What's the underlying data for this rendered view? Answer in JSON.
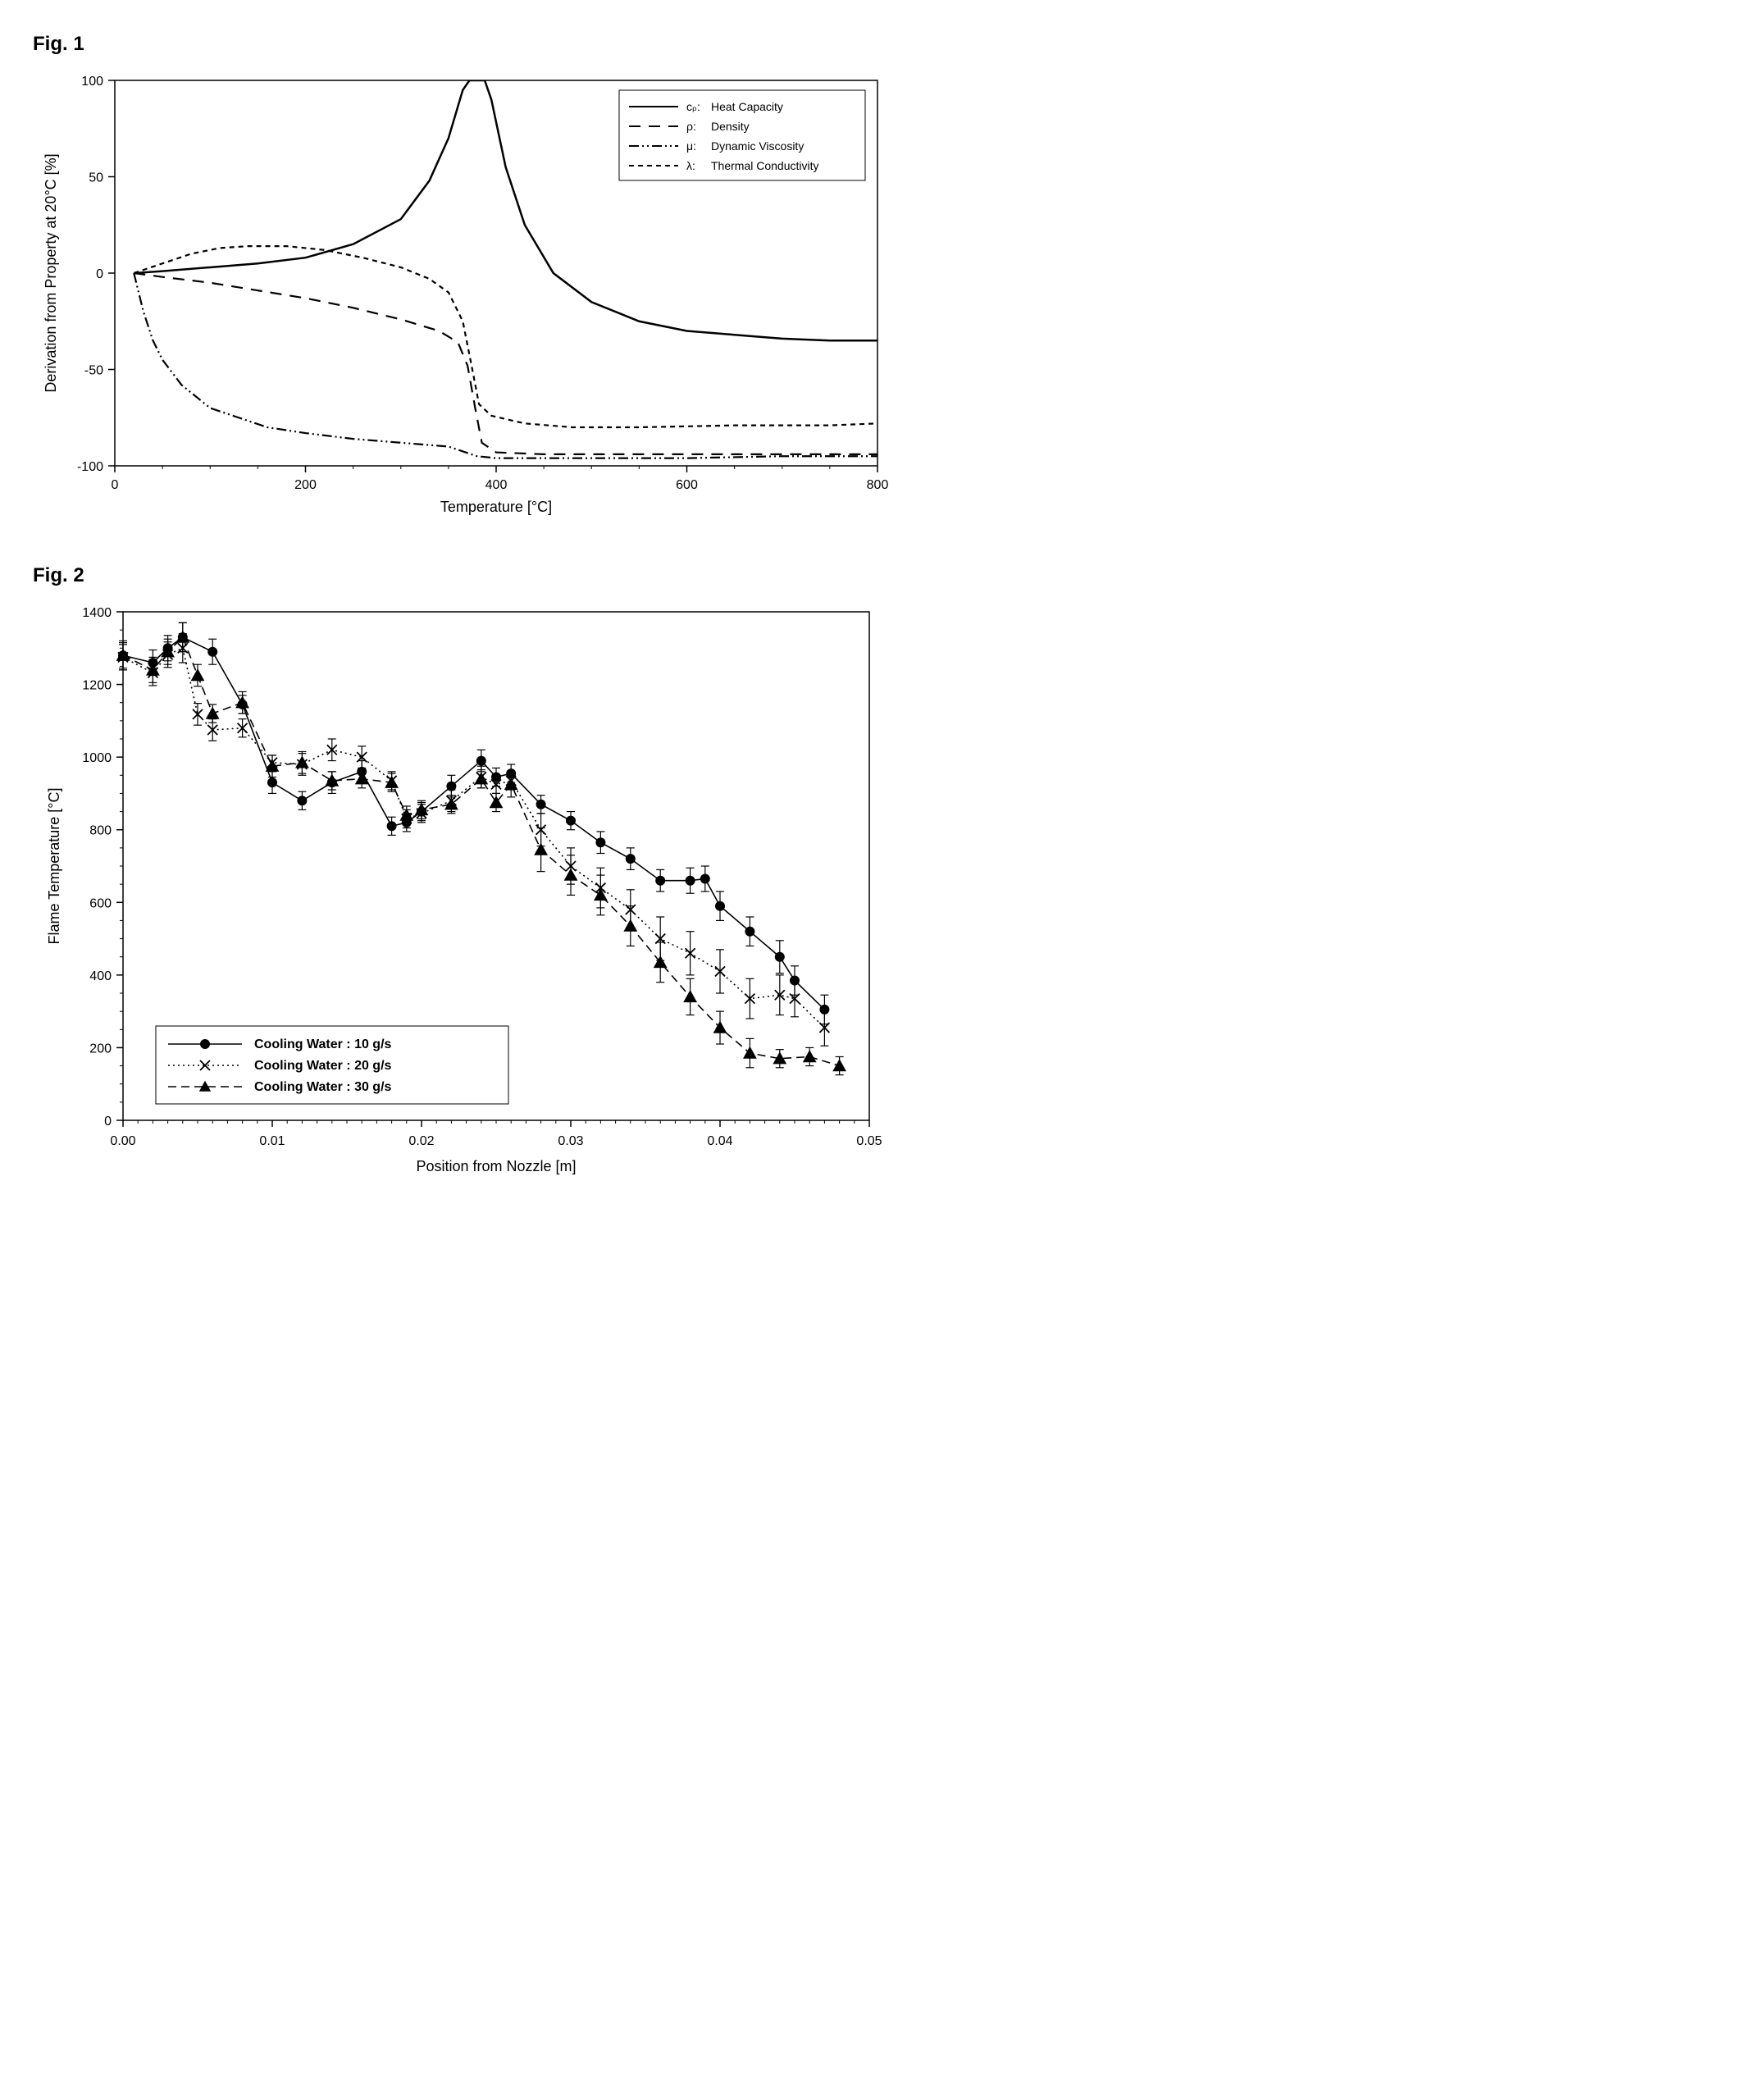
{
  "fig1": {
    "label": "Fig. 1",
    "type": "line",
    "xlabel": "Temperature [°C]",
    "ylabel": "Derivation from Property at 20°C [%]",
    "xlim": [
      0,
      800
    ],
    "ylim": [
      -100,
      100
    ],
    "xtick_step": 200,
    "ytick_step": 50,
    "label_fontsize": 18,
    "tick_fontsize": 16,
    "background_color": "#ffffff",
    "axis_color": "#000000",
    "legend": {
      "position": "top-right",
      "border_color": "#000000",
      "items": [
        {
          "symbol": "cₚ:",
          "label": "Heat Capacity",
          "style": "solid"
        },
        {
          "symbol": "ρ:",
          "label": "Density",
          "style": "longdash"
        },
        {
          "symbol": "μ:",
          "label": "dashdotdot",
          "label_text": "Dynamic Viscosity"
        },
        {
          "symbol": "λ:",
          "label": "Thermal Conductivity",
          "style": "shortdash"
        }
      ]
    },
    "series": [
      {
        "name": "heat-capacity",
        "color": "#000000",
        "width": 2.5,
        "dash": "none",
        "data": [
          [
            20,
            0
          ],
          [
            50,
            1
          ],
          [
            100,
            3
          ],
          [
            150,
            5
          ],
          [
            200,
            8
          ],
          [
            250,
            15
          ],
          [
            300,
            28
          ],
          [
            330,
            48
          ],
          [
            350,
            70
          ],
          [
            365,
            95
          ],
          [
            372,
            100
          ],
          [
            375,
            100
          ],
          [
            380,
            100
          ],
          [
            388,
            100
          ],
          [
            395,
            90
          ],
          [
            410,
            55
          ],
          [
            430,
            25
          ],
          [
            460,
            0
          ],
          [
            500,
            -15
          ],
          [
            550,
            -25
          ],
          [
            600,
            -30
          ],
          [
            650,
            -32
          ],
          [
            700,
            -34
          ],
          [
            750,
            -35
          ],
          [
            800,
            -35
          ]
        ]
      },
      {
        "name": "density",
        "color": "#000000",
        "width": 2.2,
        "dash": "14,10",
        "data": [
          [
            20,
            0
          ],
          [
            50,
            -2
          ],
          [
            100,
            -5
          ],
          [
            150,
            -9
          ],
          [
            200,
            -13
          ],
          [
            250,
            -18
          ],
          [
            300,
            -24
          ],
          [
            340,
            -30
          ],
          [
            360,
            -36
          ],
          [
            370,
            -48
          ],
          [
            378,
            -70
          ],
          [
            385,
            -88
          ],
          [
            400,
            -93
          ],
          [
            450,
            -94
          ],
          [
            500,
            -94
          ],
          [
            600,
            -94
          ],
          [
            700,
            -94
          ],
          [
            800,
            -94
          ]
        ]
      },
      {
        "name": "dynamic-viscosity",
        "color": "#000000",
        "width": 2.2,
        "dash": "12,4,2,4,2,4",
        "data": [
          [
            20,
            0
          ],
          [
            30,
            -20
          ],
          [
            40,
            -35
          ],
          [
            50,
            -45
          ],
          [
            70,
            -58
          ],
          [
            100,
            -70
          ],
          [
            130,
            -75
          ],
          [
            160,
            -80
          ],
          [
            200,
            -83
          ],
          [
            250,
            -86
          ],
          [
            300,
            -88
          ],
          [
            350,
            -90
          ],
          [
            380,
            -95
          ],
          [
            400,
            -96
          ],
          [
            450,
            -96
          ],
          [
            500,
            -96
          ],
          [
            600,
            -96
          ],
          [
            700,
            -95
          ],
          [
            800,
            -95
          ]
        ]
      },
      {
        "name": "thermal-conductivity",
        "color": "#000000",
        "width": 2.2,
        "dash": "6,5",
        "data": [
          [
            20,
            0
          ],
          [
            50,
            5
          ],
          [
            80,
            10
          ],
          [
            110,
            13
          ],
          [
            140,
            14
          ],
          [
            180,
            14
          ],
          [
            220,
            12
          ],
          [
            260,
            8
          ],
          [
            300,
            3
          ],
          [
            330,
            -3
          ],
          [
            350,
            -10
          ],
          [
            365,
            -25
          ],
          [
            375,
            -50
          ],
          [
            382,
            -68
          ],
          [
            395,
            -74
          ],
          [
            430,
            -78
          ],
          [
            480,
            -80
          ],
          [
            550,
            -80
          ],
          [
            650,
            -79
          ],
          [
            750,
            -79
          ],
          [
            800,
            -78
          ]
        ]
      }
    ]
  },
  "fig2": {
    "label": "Fig. 2",
    "type": "scatter-line-errorbar",
    "xlabel": "Position from Nozzle [m]",
    "ylabel": "Flame Temperature [°C]",
    "xlim": [
      0.0,
      0.05
    ],
    "ylim": [
      0,
      1400
    ],
    "xtick_step": 0.01,
    "ytick_step": 200,
    "label_fontsize": 18,
    "tick_fontsize": 16,
    "background_color": "#ffffff",
    "axis_color": "#000000",
    "error_cap": 5,
    "legend": {
      "position": "bottom-left-inside",
      "border_color": "#000000",
      "items": [
        {
          "marker": "circle",
          "line": "solid",
          "label": "Cooling Water : 10 g/s"
        },
        {
          "marker": "x",
          "line": "dotted",
          "label": "Cooling Water : 20 g/s"
        },
        {
          "marker": "triangle",
          "line": "dashed",
          "label": "Cooling Water : 30 g/s"
        }
      ]
    },
    "series": [
      {
        "name": "cooling-10",
        "marker": "circle",
        "marker_size": 6,
        "color": "#000000",
        "dash": "none",
        "data": [
          [
            0.0,
            1280,
            40
          ],
          [
            0.002,
            1260,
            35
          ],
          [
            0.003,
            1300,
            35
          ],
          [
            0.004,
            1330,
            40
          ],
          [
            0.006,
            1290,
            35
          ],
          [
            0.008,
            1145,
            25
          ],
          [
            0.01,
            930,
            30
          ],
          [
            0.012,
            880,
            25
          ],
          [
            0.014,
            930,
            30
          ],
          [
            0.016,
            960,
            30
          ],
          [
            0.018,
            810,
            25
          ],
          [
            0.019,
            820,
            25
          ],
          [
            0.02,
            850,
            25
          ],
          [
            0.022,
            920,
            30
          ],
          [
            0.024,
            990,
            30
          ],
          [
            0.025,
            945,
            25
          ],
          [
            0.026,
            955,
            25
          ],
          [
            0.028,
            870,
            25
          ],
          [
            0.03,
            825,
            25
          ],
          [
            0.032,
            765,
            30
          ],
          [
            0.034,
            720,
            30
          ],
          [
            0.036,
            660,
            30
          ],
          [
            0.038,
            660,
            35
          ],
          [
            0.039,
            665,
            35
          ],
          [
            0.04,
            590,
            40
          ],
          [
            0.042,
            520,
            40
          ],
          [
            0.044,
            450,
            45
          ],
          [
            0.045,
            385,
            40
          ],
          [
            0.047,
            305,
            40
          ]
        ]
      },
      {
        "name": "cooling-20",
        "marker": "x",
        "marker_size": 6,
        "color": "#000000",
        "dash": "2,4",
        "data": [
          [
            0.0,
            1275,
            35
          ],
          [
            0.002,
            1232,
            35
          ],
          [
            0.003,
            1282,
            35
          ],
          [
            0.004,
            1300,
            40
          ],
          [
            0.005,
            1118,
            30
          ],
          [
            0.006,
            1075,
            30
          ],
          [
            0.008,
            1080,
            25
          ],
          [
            0.01,
            985,
            20
          ],
          [
            0.012,
            980,
            30
          ],
          [
            0.014,
            1020,
            30
          ],
          [
            0.016,
            1000,
            30
          ],
          [
            0.018,
            935,
            25
          ],
          [
            0.019,
            830,
            25
          ],
          [
            0.02,
            845,
            25
          ],
          [
            0.022,
            880,
            30
          ],
          [
            0.024,
            945,
            30
          ],
          [
            0.025,
            925,
            25
          ],
          [
            0.026,
            935,
            25
          ],
          [
            0.028,
            800,
            45
          ],
          [
            0.03,
            700,
            50
          ],
          [
            0.032,
            640,
            55
          ],
          [
            0.034,
            580,
            55
          ],
          [
            0.036,
            500,
            60
          ],
          [
            0.038,
            460,
            60
          ],
          [
            0.04,
            410,
            60
          ],
          [
            0.042,
            335,
            55
          ],
          [
            0.044,
            345,
            55
          ],
          [
            0.045,
            335,
            50
          ],
          [
            0.047,
            255,
            50
          ]
        ]
      },
      {
        "name": "cooling-30",
        "marker": "triangle",
        "marker_size": 7,
        "color": "#000000",
        "dash": "10,6",
        "data": [
          [
            0.0,
            1280,
            35
          ],
          [
            0.002,
            1240,
            35
          ],
          [
            0.003,
            1290,
            35
          ],
          [
            0.004,
            1330,
            40
          ],
          [
            0.005,
            1225,
            30
          ],
          [
            0.006,
            1120,
            25
          ],
          [
            0.008,
            1150,
            30
          ],
          [
            0.01,
            975,
            30
          ],
          [
            0.012,
            985,
            30
          ],
          [
            0.014,
            935,
            25
          ],
          [
            0.016,
            940,
            25
          ],
          [
            0.018,
            930,
            25
          ],
          [
            0.019,
            840,
            25
          ],
          [
            0.02,
            855,
            25
          ],
          [
            0.022,
            870,
            25
          ],
          [
            0.024,
            940,
            25
          ],
          [
            0.025,
            875,
            25
          ],
          [
            0.026,
            925,
            35
          ],
          [
            0.028,
            745,
            60
          ],
          [
            0.03,
            675,
            55
          ],
          [
            0.032,
            620,
            55
          ],
          [
            0.034,
            535,
            55
          ],
          [
            0.036,
            435,
            55
          ],
          [
            0.038,
            340,
            50
          ],
          [
            0.04,
            255,
            45
          ],
          [
            0.042,
            185,
            40
          ],
          [
            0.044,
            170,
            25
          ],
          [
            0.046,
            175,
            25
          ],
          [
            0.048,
            150,
            25
          ]
        ]
      }
    ]
  }
}
